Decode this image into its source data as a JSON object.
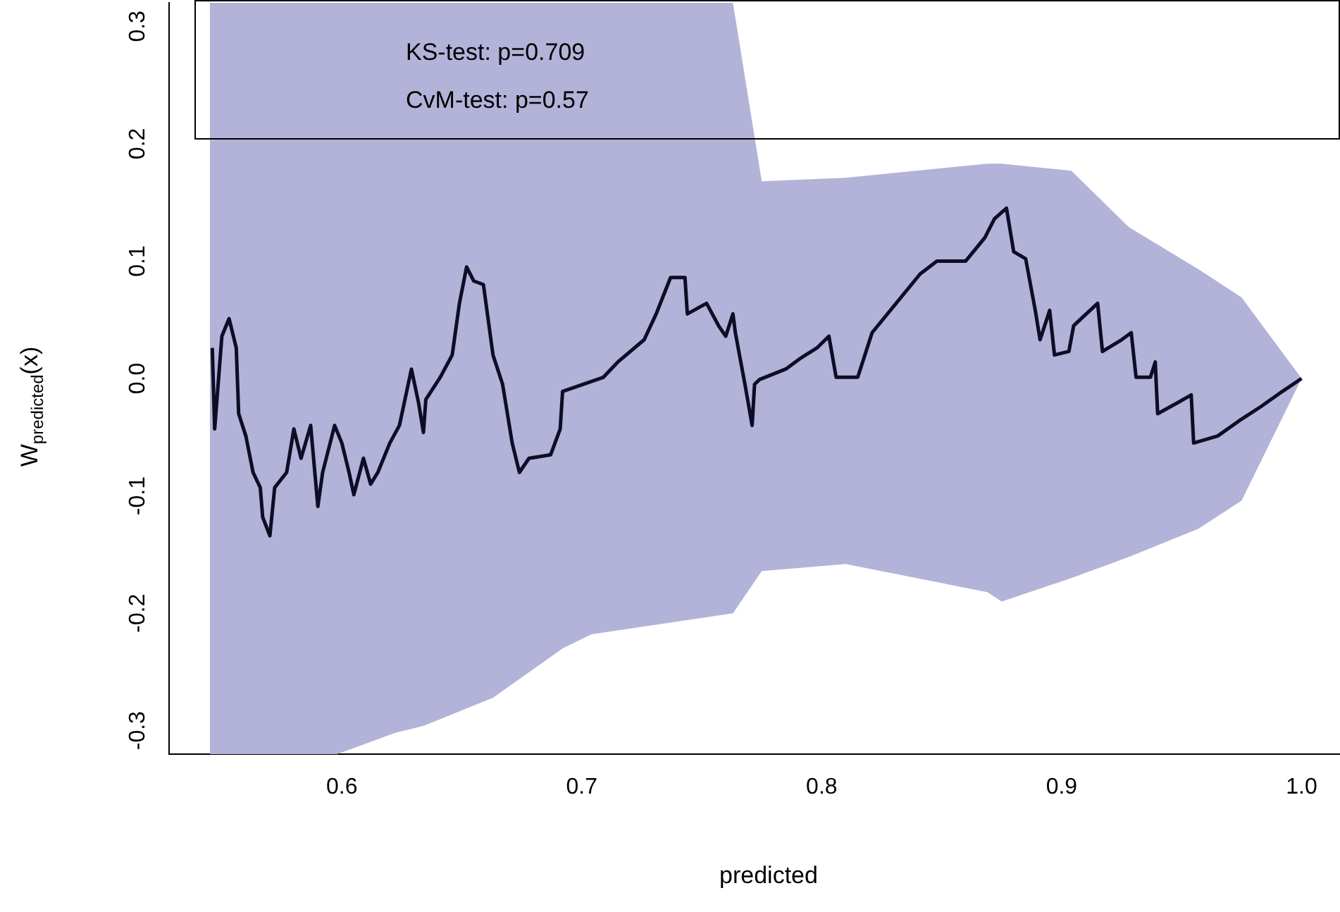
{
  "chart_data": {
    "type": "line",
    "xlabel": "predicted",
    "ylabel": "W$_{predicted}$(x)",
    "annotations": [
      "KS-test: p=0.709",
      "CvM-test: p=0.57"
    ],
    "xlim": [
      0.528,
      1.016
    ],
    "ylim": [
      -0.32,
      0.32
    ],
    "xticks": [
      0.6,
      0.7,
      0.8,
      0.9,
      {
        "value": 1.0,
        "label": "1.0"
      }
    ],
    "yticks": [
      -0.3,
      -0.2,
      -0.1,
      {
        "value": 0,
        "label": "0.0"
      },
      0.1,
      0.2,
      0.3
    ],
    "grid": false,
    "legend": false,
    "marker": "none",
    "series": [
      {
        "type": "area",
        "color": "#b3b3d9",
        "x": [
          0.545,
          0.598,
          0.622,
          0.634,
          0.663,
          0.692,
          0.704,
          0.763,
          0.775,
          0.81,
          0.869,
          0.875,
          0.904,
          0.928,
          0.957,
          0.975,
          1.0
        ],
        "values": [
          null,
          null,
          null,
          null,
          null,
          null,
          null,
          null,
          null,
          null,
          null,
          null,
          null,
          null,
          null,
          null,
          null
        ],
        "upper": [
          0.32,
          0.32,
          0.32,
          0.32,
          0.32,
          0.32,
          0.32,
          0.32,
          0.168,
          0.171,
          0.183,
          0.183,
          0.177,
          0.129,
          0.093,
          0.069,
          0
        ],
        "lower": [
          -0.32,
          -0.32,
          -0.302,
          -0.296,
          -0.272,
          -0.23,
          -0.218,
          -0.2,
          -0.164,
          -0.158,
          -0.182,
          -0.19,
          -0.17,
          -0.152,
          -0.128,
          -0.104,
          0
        ]
      },
      {
        "type": "line",
        "color": "#0d0d26",
        "line_style": "solid",
        "x": [
          0.546,
          0.547,
          0.55,
          0.553,
          0.556,
          0.557,
          0.56,
          0.563,
          0.566,
          0.567,
          0.57,
          0.572,
          0.577,
          0.58,
          0.583,
          0.587,
          0.59,
          0.592,
          0.597,
          0.6,
          0.603,
          0.605,
          0.609,
          0.612,
          0.615,
          0.62,
          0.624,
          0.629,
          0.632,
          0.634,
          0.635,
          0.641,
          0.646,
          0.649,
          0.652,
          0.655,
          0.659,
          0.663,
          0.667,
          0.671,
          0.674,
          0.678,
          0.687,
          0.691,
          0.692,
          0.709,
          0.715,
          0.726,
          0.731,
          0.737,
          0.743,
          0.744,
          0.752,
          0.757,
          0.76,
          0.763,
          0.764,
          0.768,
          0.771,
          0.772,
          0.774,
          0.785,
          0.791,
          0.798,
          0.803,
          0.806,
          0.815,
          0.821,
          0.831,
          0.841,
          0.848,
          0.86,
          0.868,
          0.872,
          0.877,
          0.88,
          0.885,
          0.889,
          0.891,
          0.895,
          0.897,
          0.903,
          0.905,
          0.915,
          0.917,
          0.925,
          0.929,
          0.931,
          0.937,
          0.939,
          0.94,
          0.948,
          0.954,
          0.955,
          0.965,
          0.974,
          0.983,
          0.992,
          1.0
        ],
        "values": [
          0.026,
          -0.043,
          0.036,
          0.051,
          0.026,
          -0.03,
          -0.049,
          -0.08,
          -0.093,
          -0.118,
          -0.134,
          -0.093,
          -0.08,
          -0.043,
          -0.068,
          -0.04,
          -0.109,
          -0.08,
          -0.04,
          -0.055,
          -0.08,
          -0.099,
          -0.068,
          -0.09,
          -0.08,
          -0.055,
          -0.04,
          0.008,
          -0.021,
          -0.046,
          -0.018,
          0.001,
          0.02,
          0.064,
          0.095,
          0.083,
          0.08,
          0.02,
          -0.005,
          -0.055,
          -0.08,
          -0.068,
          -0.065,
          -0.043,
          -0.011,
          0.001,
          0.014,
          0.033,
          0.055,
          0.086,
          0.086,
          0.055,
          0.064,
          0.045,
          0.036,
          0.055,
          0.039,
          -0.005,
          -0.04,
          -0.005,
          -0.001,
          0.008,
          0.017,
          0.026,
          0.036,
          0.001,
          0.001,
          0.039,
          0.064,
          0.089,
          0.1,
          0.1,
          0.12,
          0.136,
          0.145,
          0.108,
          0.102,
          0.058,
          0.033,
          0.058,
          0.02,
          0.023,
          0.045,
          0.064,
          0.023,
          0.033,
          0.039,
          0.001,
          0.001,
          0.014,
          -0.03,
          -0.021,
          -0.014,
          -0.055,
          -0.049,
          -0.036,
          -0.024,
          -0.011,
          0
        ]
      }
    ]
  }
}
